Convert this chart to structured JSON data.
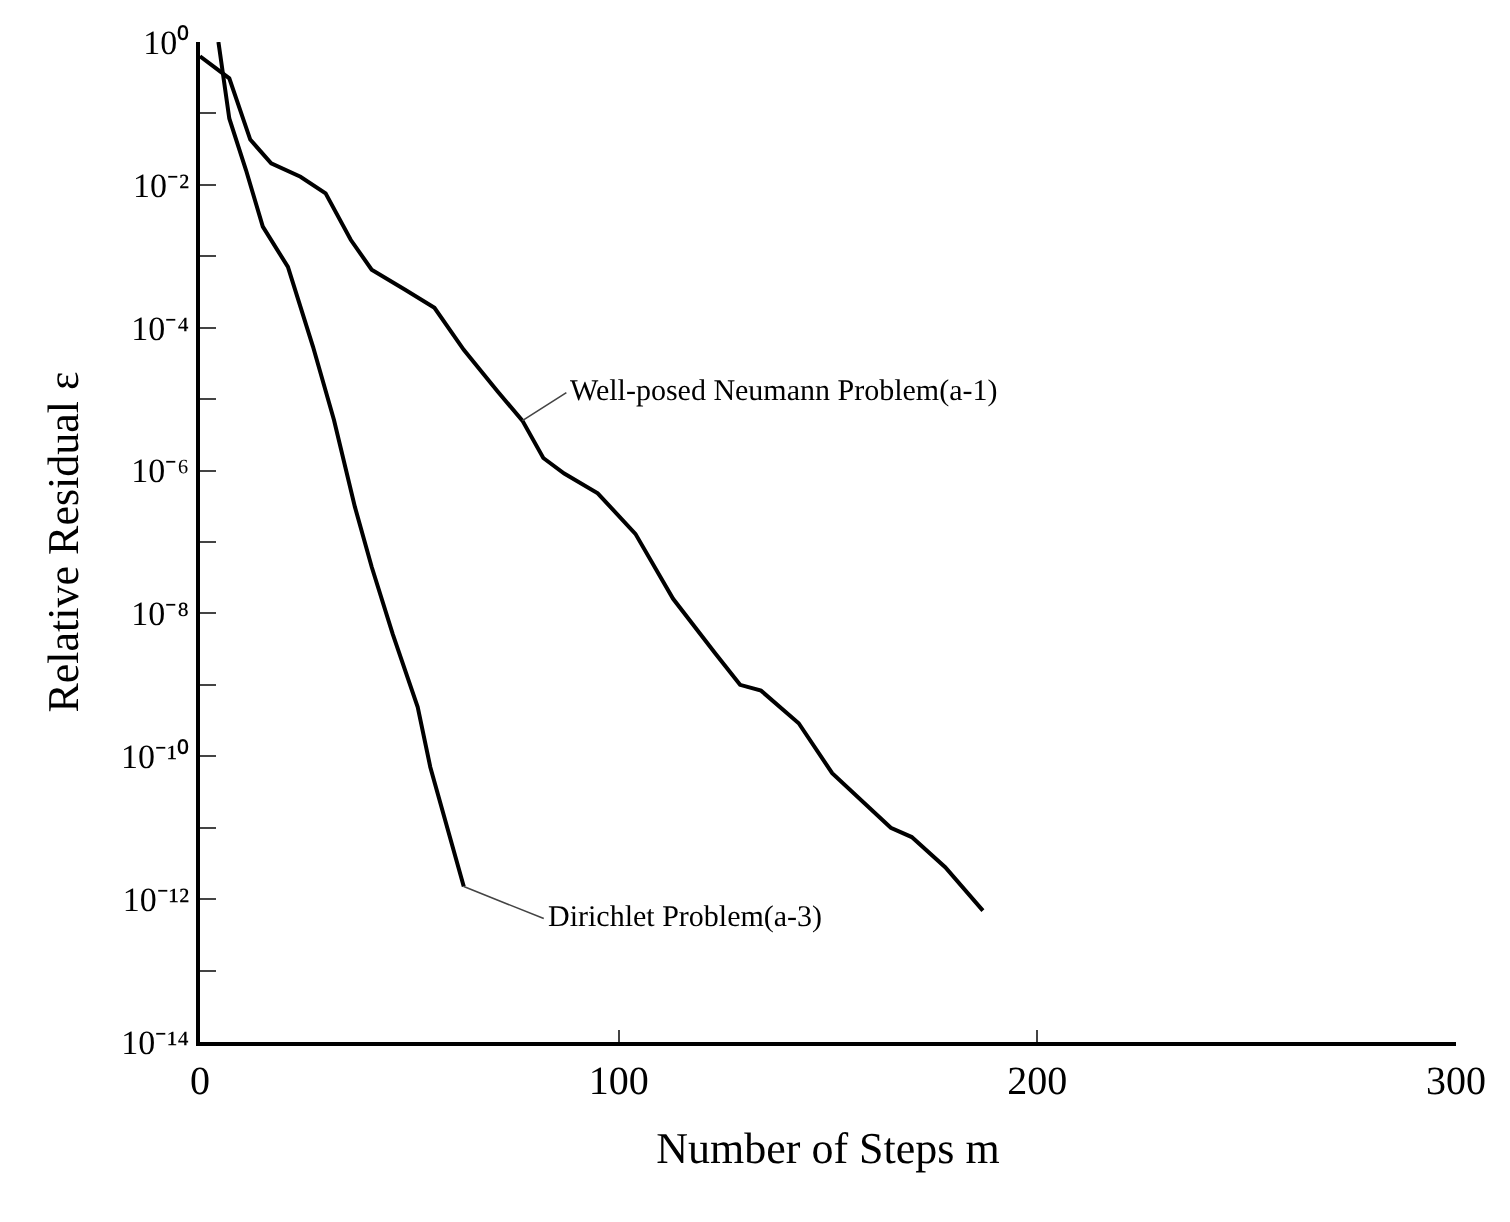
{
  "chart_data": {
    "type": "line",
    "xlabel": "Number of Steps m",
    "ylabel": "Relative Residual ε",
    "log": "y",
    "legend": false,
    "marker": "none",
    "line_style": "solid",
    "xlim": [
      0,
      300
    ],
    "xticks": [
      0,
      100,
      200,
      300
    ],
    "ylim": [
      1e-14,
      1
    ],
    "yticks": [
      {
        "value": 1,
        "label": "10⁰"
      },
      {
        "value": 0.1,
        "label": null
      },
      {
        "value": 0.01,
        "label": "10⁻²"
      },
      {
        "value": 0.001,
        "label": null
      },
      {
        "value": 0.0001,
        "label": "10⁻⁴"
      },
      {
        "value": 1e-05,
        "label": null
      },
      {
        "value": 1e-06,
        "label": "10⁻⁶"
      },
      {
        "value": 1e-07,
        "label": null
      },
      {
        "value": 1e-08,
        "label": "10⁻⁸"
      },
      {
        "value": 1e-09,
        "label": null
      },
      {
        "value": 1e-10,
        "label": "10⁻¹⁰"
      },
      {
        "value": 1e-11,
        "label": null
      },
      {
        "value": 1e-12,
        "label": "10⁻¹²"
      },
      {
        "value": 1e-13,
        "label": null
      },
      {
        "value": 1e-14,
        "label": "10⁻¹⁴"
      }
    ],
    "series": [
      {
        "name": "Well-posed Neumann Problem(a-1)",
        "color": "#000000",
        "x": [
          0,
          7,
          12,
          17,
          24,
          30,
          36,
          41,
          49,
          56,
          63,
          71,
          77,
          82,
          87,
          95,
          104,
          113,
          123,
          129,
          134,
          143,
          151,
          165,
          170,
          178,
          187
        ],
        "values": [
          0.63,
          0.31,
          0.043,
          0.02,
          0.013,
          0.0076,
          0.0017,
          0.00065,
          0.00034,
          0.00019,
          4.9e-05,
          1.3e-05,
          5e-06,
          1.5e-06,
          9.1e-07,
          4.8e-07,
          1.3e-07,
          1.6e-08,
          2.8e-09,
          1e-09,
          8.3e-10,
          2.9e-10,
          5.8e-11,
          1e-11,
          7.4e-12,
          2.8e-12,
          6.9e-13
        ]
      },
      {
        "name": "Dirichlet Problem(a-3)",
        "color": "#000000",
        "x": [
          4.4,
          7,
          11,
          15,
          21,
          27,
          32,
          37,
          41,
          46,
          52,
          55,
          63
        ],
        "values": [
          1,
          0.085,
          0.016,
          0.0026,
          0.00071,
          5.4e-05,
          5.1e-06,
          3.1e-07,
          4.5e-08,
          5.2e-09,
          4.9e-10,
          7.1e-11,
          1.5e-12
        ]
      }
    ]
  }
}
